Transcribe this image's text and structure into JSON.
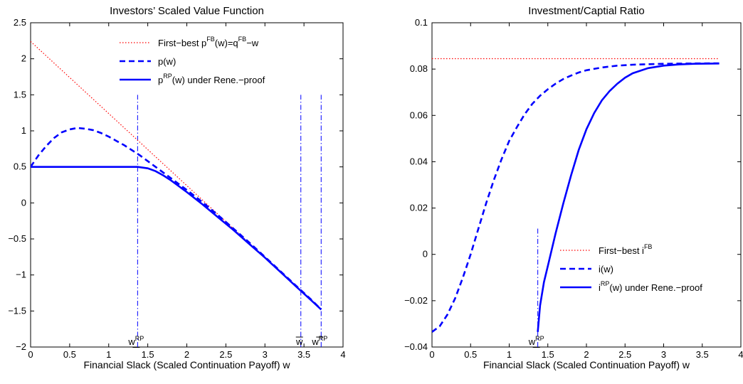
{
  "chart_data": [
    {
      "type": "line",
      "title": "Investors’ Scaled Value Function",
      "xlabel": "Financial Slack (Scaled Continuation Payoff) w",
      "ylabel": "",
      "xlim": [
        0,
        4
      ],
      "ylim": [
        -2,
        2.5
      ],
      "xticks": [
        0,
        0.5,
        1,
        1.5,
        2,
        2.5,
        3,
        3.5,
        4
      ],
      "xtick_labels": [
        "0",
        "0.5",
        "1",
        "1.5",
        "2",
        "2.5",
        "3",
        "3.5",
        "4"
      ],
      "yticks": [
        -2,
        -1.5,
        -1,
        -0.5,
        0,
        0.5,
        1,
        1.5,
        2,
        2.5
      ],
      "ytick_labels": [
        "−2",
        "−1.5",
        "−1",
        "−0.5",
        "0",
        "0.5",
        "1",
        "1.5",
        "2",
        "2.5"
      ],
      "grid": false,
      "legend_position": "top-right",
      "series": [
        {
          "name": "First−best p^FB(w)=q^FB−w",
          "label_main": "First−best p",
          "label_sup": "FB",
          "label_mid": "(w)=q",
          "label_sup2": "FB",
          "label_tail": "−w",
          "style": "dotted",
          "color": "#ff0000",
          "x": [
            0,
            0.5,
            1.0,
            1.5,
            2.0,
            2.5,
            3.0,
            3.5,
            3.72
          ],
          "y": [
            2.24,
            1.74,
            1.24,
            0.74,
            0.24,
            -0.26,
            -0.76,
            -1.26,
            -1.48
          ]
        },
        {
          "name": "p(w)",
          "label_main": "p(w)",
          "style": "dashed",
          "color": "#0000ff",
          "x": [
            0,
            0.1,
            0.2,
            0.3,
            0.4,
            0.5,
            0.6,
            0.7,
            0.8,
            0.9,
            1.0,
            1.1,
            1.2,
            1.3,
            1.4,
            1.5,
            1.6,
            1.7,
            1.8,
            1.9,
            2.0,
            2.2,
            2.4,
            2.6,
            2.8,
            3.0,
            3.2,
            3.4,
            3.6,
            3.72
          ],
          "y": [
            0.5,
            0.66,
            0.79,
            0.9,
            0.98,
            1.02,
            1.04,
            1.03,
            1.01,
            0.97,
            0.92,
            0.86,
            0.8,
            0.73,
            0.66,
            0.58,
            0.5,
            0.42,
            0.34,
            0.26,
            0.18,
            0.01,
            -0.17,
            -0.36,
            -0.55,
            -0.75,
            -0.95,
            -1.15,
            -1.35,
            -1.48
          ]
        },
        {
          "name": "p^RP(w) under Rene.−proof",
          "label_main": "p",
          "label_sup": "RP",
          "label_tail": "(w) under Rene.−proof",
          "style": "solid",
          "color": "#0000ff",
          "x": [
            0,
            0.5,
            1.0,
            1.37,
            1.5,
            1.6,
            1.7,
            1.8,
            1.9,
            2.0,
            2.2,
            2.4,
            2.6,
            2.8,
            3.0,
            3.2,
            3.4,
            3.6,
            3.72
          ],
          "y": [
            0.5,
            0.5,
            0.5,
            0.5,
            0.48,
            0.44,
            0.38,
            0.31,
            0.23,
            0.15,
            -0.02,
            -0.2,
            -0.38,
            -0.57,
            -0.76,
            -0.96,
            -1.16,
            -1.36,
            -1.48
          ]
        }
      ],
      "vlines": [
        {
          "x": 1.37,
          "y_top": 1.5,
          "label": "w",
          "label_sup": "RP",
          "underline": true
        },
        {
          "x": 3.46,
          "y_top": 1.5,
          "label": "w",
          "underline": false,
          "overline": true
        },
        {
          "x": 3.72,
          "y_top": 1.5,
          "label": "w",
          "label_sup": "RP",
          "overline": true
        }
      ]
    },
    {
      "type": "line",
      "title": "Investment/Captial Ratio",
      "xlabel": "Financial Slack (Scaled Continuation Payoff) w",
      "ylabel": "",
      "xlim": [
        0,
        4
      ],
      "ylim": [
        -0.04,
        0.1
      ],
      "xticks": [
        0,
        0.5,
        1,
        1.5,
        2,
        2.5,
        3,
        3.5,
        4
      ],
      "xtick_labels": [
        "0",
        "0.5",
        "1",
        "1.5",
        "2",
        "2.5",
        "3",
        "3.5",
        "4"
      ],
      "yticks": [
        -0.04,
        -0.02,
        0,
        0.02,
        0.04,
        0.06,
        0.08,
        0.1
      ],
      "ytick_labels": [
        "−0.04",
        "−0.02",
        "0",
        "0.02",
        "0.04",
        "0.06",
        "0.08",
        "0.1"
      ],
      "grid": false,
      "legend_position": "bottom-right",
      "series": [
        {
          "name": "First−best i^FB",
          "label_main": "First−best i",
          "label_sup": "FB",
          "style": "dotted",
          "color": "#ff0000",
          "x": [
            0,
            3.72
          ],
          "y": [
            0.0845,
            0.0845
          ]
        },
        {
          "name": "i(w)",
          "label_main": "i(w)",
          "style": "dashed",
          "color": "#0000ff",
          "x": [
            0,
            0.1,
            0.2,
            0.3,
            0.4,
            0.5,
            0.6,
            0.7,
            0.8,
            0.9,
            1.0,
            1.1,
            1.2,
            1.3,
            1.4,
            1.5,
            1.6,
            1.7,
            1.8,
            1.9,
            2.0,
            2.2,
            2.4,
            2.6,
            2.8,
            3.0,
            3.3,
            3.72
          ],
          "y": [
            -0.0335,
            -0.031,
            -0.026,
            -0.019,
            -0.01,
            0.0,
            0.011,
            0.022,
            0.032,
            0.041,
            0.049,
            0.055,
            0.0605,
            0.065,
            0.0685,
            0.0713,
            0.0737,
            0.0757,
            0.0772,
            0.0785,
            0.0795,
            0.0807,
            0.0815,
            0.0819,
            0.0821,
            0.0823,
            0.0824,
            0.0825
          ]
        },
        {
          "name": "i^RP(w) under Rene.−proof",
          "label_main": "i",
          "label_sup": "RP",
          "label_tail": "(w) under Rene.−proof",
          "style": "solid",
          "color": "#0000ff",
          "x": [
            1.37,
            1.4,
            1.45,
            1.5,
            1.6,
            1.7,
            1.8,
            1.9,
            2.0,
            2.1,
            2.2,
            2.3,
            2.4,
            2.5,
            2.6,
            2.8,
            3.0,
            3.2,
            3.4,
            3.72
          ],
          "y": [
            -0.0335,
            -0.022,
            -0.012,
            -0.005,
            0.009,
            0.022,
            0.034,
            0.045,
            0.054,
            0.061,
            0.0665,
            0.0705,
            0.0737,
            0.0763,
            0.0782,
            0.0804,
            0.0815,
            0.082,
            0.0823,
            0.0824
          ]
        }
      ],
      "vlines": [
        {
          "x": 1.37,
          "y_top": 0.0115,
          "label": "w",
          "label_sup": "RP",
          "underline": true
        }
      ]
    }
  ]
}
